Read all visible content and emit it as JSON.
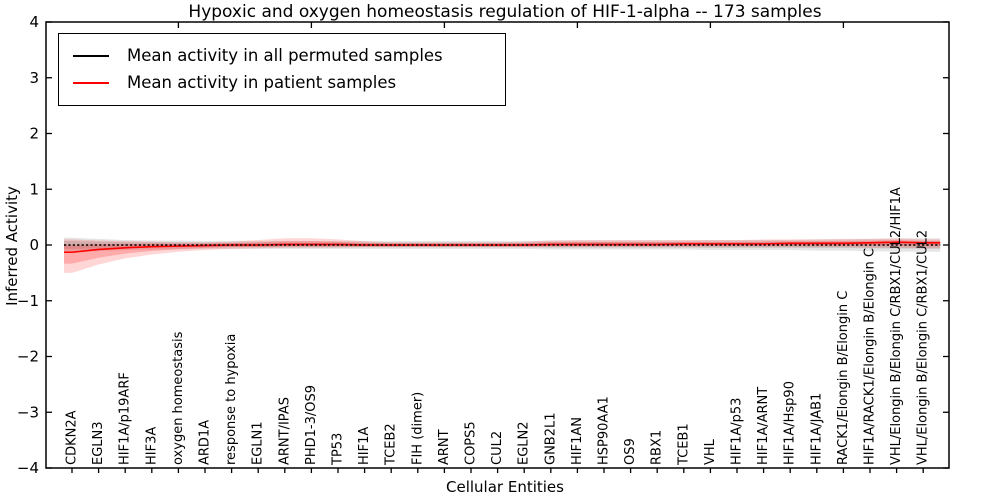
{
  "title": "Hypoxic and oxygen homeostasis regulation of HIF-1-alpha -- 173 samples",
  "legend": {
    "items": [
      {
        "label": "Mean activity in all permuted samples",
        "color": "#000000"
      },
      {
        "label": "Mean activity in patient samples",
        "color": "#ff0000"
      }
    ]
  },
  "axes": {
    "xlabel": "Cellular Entities",
    "ylabel": "Inferred Activity"
  },
  "chart_data": {
    "type": "line",
    "title": "Hypoxic and oxygen homeostasis regulation of HIF-1-alpha -- 173 samples",
    "xlabel": "Cellular Entities",
    "ylabel": "Inferred Activity",
    "ylim": [
      -4,
      4
    ],
    "yticks": [
      4,
      3,
      2,
      1,
      0,
      -1,
      -2,
      -3,
      -4
    ],
    "grid": false,
    "legend_position": "upper left",
    "sample_count": 173,
    "categories": [
      "CDKN2A",
      "EGLN3",
      "HIF1A/p19ARF",
      "HIF3A",
      "oxygen homeostasis",
      "ARD1A",
      "response to hypoxia",
      "EGLN1",
      "ARNT/IPAS",
      "PHD1-3/OS9",
      "TP53",
      "HIF1A",
      "TCEB2",
      "FIH (dimer)",
      "ARNT",
      "COPS5",
      "CUL2",
      "EGLN2",
      "GNB2L1",
      "HIF1AN",
      "HSP90AA1",
      "OS9",
      "RBX1",
      "TCEB1",
      "VHL",
      "HIF1A/p53",
      "HIF1A/ARNT",
      "HIF1A/Hsp90",
      "HIF1A/JAB1",
      "RACK1/Elongin B/Elongin C",
      "HIF1A/RACK1/Elongin B/Elongin C",
      "VHL/Elongin B/Elongin C/RBX1/CUL2/HIF1A",
      "VHL/Elongin B/Elongin C/RBX1/CUL2"
    ],
    "series": [
      {
        "name": "Mean activity in all permuted samples",
        "color": "#000000",
        "style": "dashed",
        "values": [
          0,
          0,
          0,
          0,
          0,
          0,
          0,
          0,
          0,
          0,
          0,
          0,
          0,
          0,
          0,
          0,
          0,
          0,
          0,
          0,
          0,
          0,
          0,
          0,
          0,
          0,
          0,
          0,
          0,
          0,
          0,
          0,
          0
        ]
      },
      {
        "name": "Mean activity in patient samples",
        "color": "#ff0000",
        "style": "solid",
        "values": [
          -0.13,
          -0.08,
          -0.05,
          -0.03,
          -0.02,
          -0.01,
          0,
          0,
          0.01,
          0.01,
          0.01,
          0,
          0,
          0,
          0,
          0,
          0,
          0,
          0.01,
          0.01,
          0.01,
          0.01,
          0.01,
          0.02,
          0.02,
          0.02,
          0.02,
          0.03,
          0.03,
          0.03,
          0.04,
          0.05,
          0.04
        ]
      }
    ],
    "bands": [
      {
        "name": "permuted-samples-band",
        "color_rgb": "0,0,0",
        "alpha_outer": 0.1,
        "alpha_inner": 0.1,
        "upper": [
          0.13,
          0.11,
          0.09,
          0.08,
          0.08,
          0.07,
          0.07,
          0.07,
          0.07,
          0.07,
          0.07,
          0.07,
          0.07,
          0.07,
          0.07,
          0.07,
          0.07,
          0.07,
          0.08,
          0.08,
          0.08,
          0.08,
          0.08,
          0.08,
          0.09,
          0.09,
          0.09,
          0.09,
          0.1,
          0.1,
          0.11,
          0.12,
          0.12
        ],
        "lower": [
          -0.13,
          -0.11,
          -0.09,
          -0.08,
          -0.08,
          -0.07,
          -0.07,
          -0.07,
          -0.07,
          -0.07,
          -0.07,
          -0.07,
          -0.07,
          -0.07,
          -0.07,
          -0.07,
          -0.07,
          -0.07,
          -0.08,
          -0.08,
          -0.08,
          -0.08,
          -0.08,
          -0.08,
          -0.09,
          -0.09,
          -0.09,
          -0.09,
          -0.1,
          -0.1,
          -0.11,
          -0.12,
          -0.12
        ],
        "center": [
          0,
          0,
          0,
          0,
          0,
          0,
          0,
          0,
          0,
          0,
          0,
          0,
          0,
          0,
          0,
          0,
          0,
          0,
          0,
          0,
          0,
          0,
          0,
          0,
          0,
          0,
          0,
          0,
          0,
          0,
          0,
          0,
          0
        ]
      },
      {
        "name": "patient-samples-band",
        "color_rgb": "255,0,0",
        "alpha_outer": 0.16,
        "alpha_inner": 0.2,
        "upper": [
          0.1,
          0.08,
          0.07,
          0.06,
          0.05,
          0.05,
          0.06,
          0.09,
          0.12,
          0.12,
          0.1,
          0.07,
          0.05,
          0.05,
          0.05,
          0.05,
          0.05,
          0.06,
          0.08,
          0.09,
          0.09,
          0.09,
          0.09,
          0.09,
          0.09,
          0.09,
          0.1,
          0.1,
          0.1,
          0.11,
          0.11,
          0.12,
          0.1
        ],
        "lower": [
          -0.5,
          -0.35,
          -0.24,
          -0.17,
          -0.12,
          -0.09,
          -0.07,
          -0.06,
          -0.05,
          -0.05,
          -0.05,
          -0.04,
          -0.04,
          -0.04,
          -0.04,
          -0.04,
          -0.04,
          -0.04,
          -0.04,
          -0.04,
          -0.04,
          -0.04,
          -0.04,
          -0.04,
          -0.04,
          -0.04,
          -0.04,
          -0.04,
          -0.04,
          -0.04,
          -0.05,
          -0.05,
          -0.06
        ],
        "center": [
          -0.13,
          -0.08,
          -0.05,
          -0.03,
          -0.02,
          -0.01,
          0,
          0,
          0.01,
          0.01,
          0.01,
          0,
          0,
          0,
          0,
          0,
          0,
          0,
          0.01,
          0.01,
          0.01,
          0.01,
          0.01,
          0.02,
          0.02,
          0.02,
          0.02,
          0.03,
          0.03,
          0.03,
          0.04,
          0.05,
          0.04
        ]
      }
    ],
    "top_tick_indices": [
      4,
      9,
      14,
      19,
      24,
      29
    ]
  }
}
